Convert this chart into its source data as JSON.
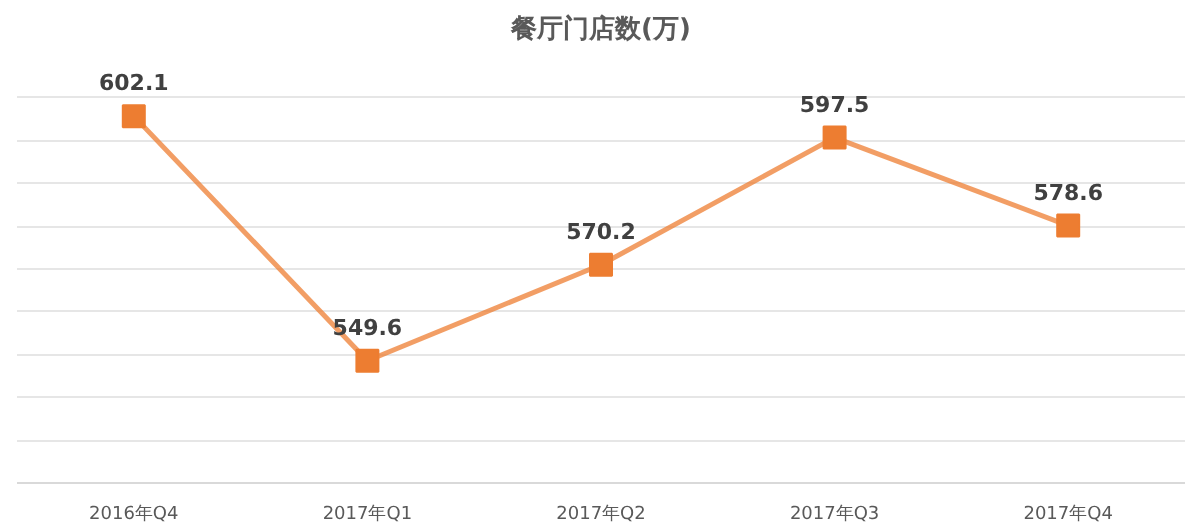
{
  "chart_data": {
    "type": "line",
    "title": "餐厅门店数(万)",
    "categories": [
      "2016年Q4",
      "2017年Q1",
      "2017年Q2",
      "2017年Q3",
      "2017年Q4"
    ],
    "series": [
      {
        "color": "#ed7d31",
        "values": [
          602.1,
          549.6,
          570.2,
          597.5,
          578.6
        ]
      }
    ],
    "data_labels": true,
    "marker": "square",
    "line_style": "solid",
    "grid": "y"
  }
}
